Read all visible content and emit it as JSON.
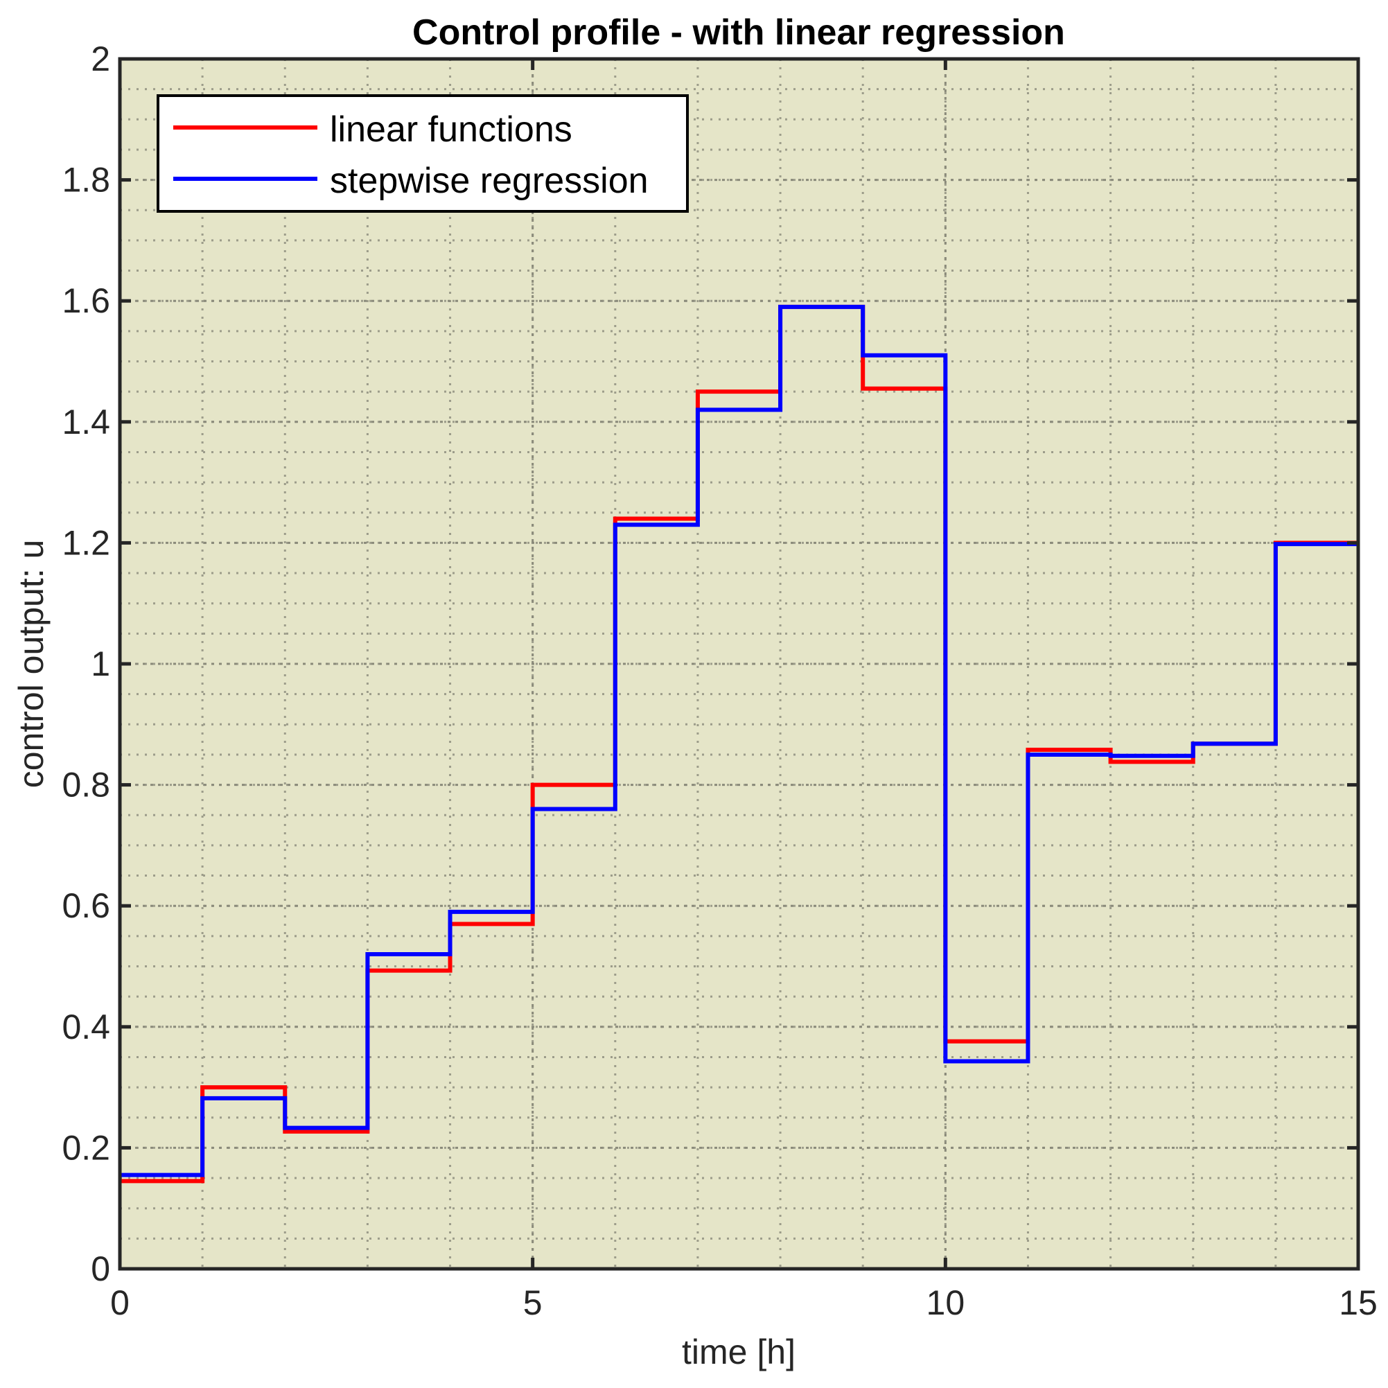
{
  "chart_data": {
    "type": "line",
    "step": "post",
    "title": "Control profile - with linear regression",
    "xlabel": "time [h]",
    "ylabel": "control output: u",
    "xlim": [
      0,
      15
    ],
    "ylim": [
      0,
      2
    ],
    "xticks": [
      0,
      5,
      10,
      15
    ],
    "xtick_labels": [
      "0",
      "5",
      "10",
      "15"
    ],
    "yticks": [
      0,
      0.2,
      0.4,
      0.6,
      0.8,
      1,
      1.2,
      1.4,
      1.6,
      1.8,
      2
    ],
    "ytick_labels": [
      "0",
      "0.2",
      "0.4",
      "0.6",
      "0.8",
      "1",
      "1.2",
      "1.4",
      "1.6",
      "1.8",
      "2"
    ],
    "grid": true,
    "minor_grid": true,
    "legend_position": "top-left",
    "background_color": "#e5e5c8",
    "x": [
      0,
      1,
      2,
      3,
      4,
      5,
      6,
      7,
      8,
      9,
      10,
      11,
      12,
      13,
      14,
      15
    ],
    "series": [
      {
        "name": "linear functions",
        "color": "#ff0000",
        "values": [
          0.145,
          0.3,
          0.227,
          0.493,
          0.57,
          0.8,
          1.24,
          1.45,
          1.59,
          1.455,
          0.376,
          0.858,
          0.838,
          0.868,
          1.2,
          1.2
        ]
      },
      {
        "name": "stepwise regression",
        "color": "#0000ff",
        "values": [
          0.155,
          0.282,
          0.233,
          0.52,
          0.59,
          0.76,
          1.23,
          1.42,
          1.59,
          1.51,
          0.343,
          0.85,
          0.848,
          0.868,
          1.198,
          1.198
        ]
      }
    ]
  }
}
